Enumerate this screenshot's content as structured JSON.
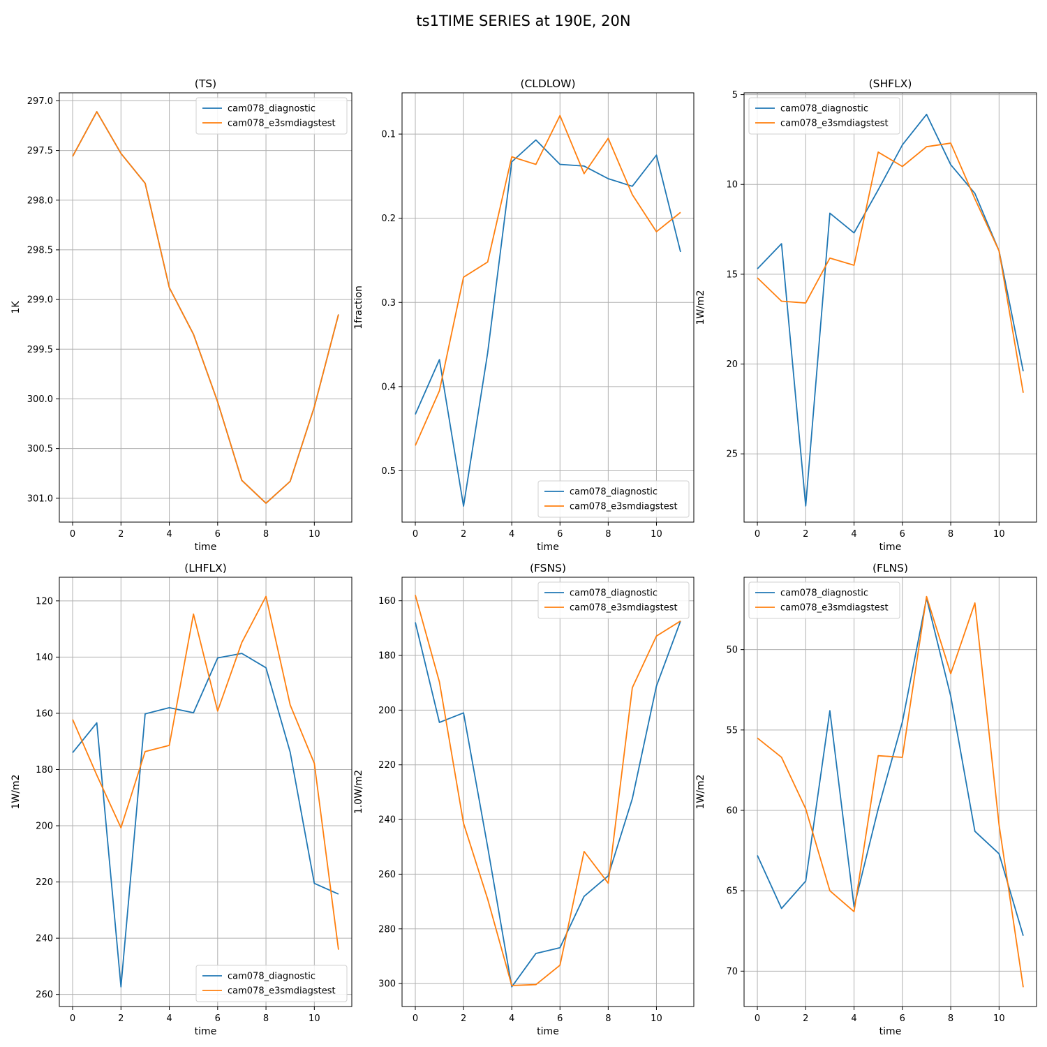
{
  "figure": {
    "suptitle": "ts1TIME SERIES at 190E, 20N"
  },
  "colors": {
    "series0": "#1f77b4",
    "series1": "#ff7f0e",
    "grid": "#b0b0b0",
    "axis": "#000000"
  },
  "chart_data": [
    {
      "type": "line",
      "title": "(TS)",
      "xlabel": "time",
      "ylabel": "1K",
      "xlim": [
        -0.55,
        11.55
      ],
      "ylim": [
        301.24,
        296.92
      ],
      "y_inverted": true,
      "xticks": [
        0,
        2,
        4,
        6,
        8,
        10
      ],
      "yticks": [
        297.0,
        297.5,
        298.0,
        298.5,
        299.0,
        299.5,
        300.0,
        300.5,
        301.0
      ],
      "ytick_labels": [
        "297.0",
        "297.5",
        "298.0",
        "298.5",
        "299.0",
        "299.5",
        "300.0",
        "300.5",
        "301.0"
      ],
      "grid": true,
      "legend": "top-right",
      "x": [
        0,
        1,
        2,
        3,
        4,
        5,
        6,
        7,
        8,
        9,
        10,
        11
      ],
      "series": [
        {
          "name": "cam078_diagnostic",
          "values": [
            297.56,
            297.11,
            297.53,
            297.83,
            298.88,
            299.35,
            300.03,
            300.82,
            301.05,
            300.83,
            300.08,
            299.15
          ]
        },
        {
          "name": "cam078_e3smdiagstest",
          "values": [
            297.56,
            297.11,
            297.53,
            297.83,
            298.88,
            299.35,
            300.03,
            300.82,
            301.05,
            300.83,
            300.08,
            299.15
          ]
        }
      ]
    },
    {
      "type": "line",
      "title": "(CLDLOW)",
      "xlabel": "time",
      "ylabel": "1fraction",
      "xlim": [
        -0.55,
        11.55
      ],
      "ylim": [
        0.561,
        0.051
      ],
      "y_inverted": true,
      "xticks": [
        0,
        2,
        4,
        6,
        8,
        10
      ],
      "yticks": [
        0.1,
        0.2,
        0.3,
        0.4,
        0.5
      ],
      "ytick_labels": [
        "0.1",
        "0.2",
        "0.3",
        "0.4",
        "0.5"
      ],
      "grid": true,
      "legend": "bottom-right",
      "x": [
        0,
        1,
        2,
        3,
        4,
        5,
        6,
        7,
        8,
        9,
        10,
        11
      ],
      "series": [
        {
          "name": "cam078_diagnostic",
          "values": [
            0.433,
            0.368,
            0.542,
            0.36,
            0.133,
            0.107,
            0.136,
            0.138,
            0.153,
            0.162,
            0.125,
            0.24
          ]
        },
        {
          "name": "cam078_e3smdiagstest",
          "values": [
            0.47,
            0.405,
            0.27,
            0.252,
            0.127,
            0.136,
            0.078,
            0.147,
            0.105,
            0.172,
            0.216,
            0.193
          ]
        }
      ]
    },
    {
      "type": "line",
      "title": "(SHFLX)",
      "xlabel": "time",
      "ylabel": "1W/m2",
      "xlim": [
        -0.55,
        11.55
      ],
      "ylim": [
        28.8,
        4.9
      ],
      "y_inverted": true,
      "xticks": [
        0,
        2,
        4,
        6,
        8,
        10
      ],
      "yticks": [
        5,
        10,
        15,
        20,
        25
      ],
      "ytick_labels": [
        "5",
        "10",
        "15",
        "20",
        "25"
      ],
      "grid": true,
      "legend": "top-left",
      "x": [
        0,
        1,
        2,
        3,
        4,
        5,
        6,
        7,
        8,
        9,
        10,
        11
      ],
      "series": [
        {
          "name": "cam078_diagnostic",
          "values": [
            14.7,
            13.3,
            27.9,
            11.6,
            12.7,
            10.3,
            7.8,
            6.1,
            8.9,
            10.5,
            13.7,
            20.4
          ]
        },
        {
          "name": "cam078_e3smdiagstest",
          "values": [
            15.2,
            16.5,
            16.6,
            14.1,
            14.5,
            8.2,
            9.0,
            7.9,
            7.7,
            10.8,
            13.7,
            21.6
          ]
        }
      ]
    },
    {
      "type": "line",
      "title": "(LHFLX)",
      "xlabel": "time",
      "ylabel": "1W/m2",
      "xlim": [
        -0.55,
        11.55
      ],
      "ylim": [
        264.3,
        111.6
      ],
      "y_inverted": true,
      "xticks": [
        0,
        2,
        4,
        6,
        8,
        10
      ],
      "yticks": [
        120,
        140,
        160,
        180,
        200,
        220,
        240,
        260
      ],
      "ytick_labels": [
        "120",
        "140",
        "160",
        "180",
        "200",
        "220",
        "240",
        "260"
      ],
      "grid": true,
      "legend": "bottom-right",
      "x": [
        0,
        1,
        2,
        3,
        4,
        5,
        6,
        7,
        8,
        9,
        10,
        11
      ],
      "series": [
        {
          "name": "cam078_diagnostic",
          "values": [
            174.0,
            163.4,
            257.3,
            160.2,
            158.0,
            159.8,
            140.3,
            138.7,
            143.8,
            173.8,
            220.5,
            224.3
          ]
        },
        {
          "name": "cam078_e3smdiagstest",
          "values": [
            162.2,
            182.0,
            200.7,
            173.6,
            171.4,
            124.7,
            159.2,
            134.8,
            118.4,
            157.0,
            177.8,
            244.1
          ]
        }
      ]
    },
    {
      "type": "line",
      "title": "(FSNS)",
      "xlabel": "time",
      "ylabel": "1.0W/m2",
      "xlim": [
        -0.55,
        11.55
      ],
      "ylim": [
        308.4,
        151.4
      ],
      "y_inverted": true,
      "xticks": [
        0,
        2,
        4,
        6,
        8,
        10
      ],
      "yticks": [
        160,
        180,
        200,
        220,
        240,
        260,
        280,
        300
      ],
      "ytick_labels": [
        "160",
        "180",
        "200",
        "220",
        "240",
        "260",
        "280",
        "300"
      ],
      "grid": true,
      "legend": "top-right",
      "x": [
        0,
        1,
        2,
        3,
        4,
        5,
        6,
        7,
        8,
        9,
        10,
        11
      ],
      "series": [
        {
          "name": "cam078_diagnostic",
          "values": [
            167.9,
            204.5,
            201.0,
            250.0,
            301.2,
            289.0,
            286.9,
            268.1,
            260.6,
            232.4,
            191.2,
            167.4
          ]
        },
        {
          "name": "cam078_e3smdiagstest",
          "values": [
            157.9,
            189.7,
            241.4,
            269.1,
            300.7,
            300.4,
            293.3,
            251.7,
            263.3,
            191.8,
            172.9,
            167.4
          ]
        }
      ]
    },
    {
      "type": "line",
      "title": "(FLNS)",
      "xlabel": "time",
      "ylabel": "1W/m2",
      "xlim": [
        -0.55,
        11.55
      ],
      "ylim": [
        72.2,
        45.5
      ],
      "y_inverted": true,
      "xticks": [
        0,
        2,
        4,
        6,
        8,
        10
      ],
      "yticks": [
        50,
        55,
        60,
        65,
        70
      ],
      "ytick_labels": [
        "50",
        "55",
        "60",
        "65",
        "70"
      ],
      "grid": true,
      "legend": "top-left",
      "x": [
        0,
        1,
        2,
        3,
        4,
        5,
        6,
        7,
        8,
        9,
        10,
        11
      ],
      "series": [
        {
          "name": "cam078_diagnostic",
          "values": [
            62.8,
            66.1,
            64.4,
            53.8,
            66.0,
            59.9,
            54.5,
            46.8,
            52.9,
            61.3,
            62.7,
            67.8
          ]
        },
        {
          "name": "cam078_e3smdiagstest",
          "values": [
            55.5,
            56.7,
            59.9,
            65.0,
            66.3,
            56.6,
            56.7,
            46.7,
            51.5,
            47.1,
            60.9,
            71.0
          ]
        }
      ]
    }
  ]
}
